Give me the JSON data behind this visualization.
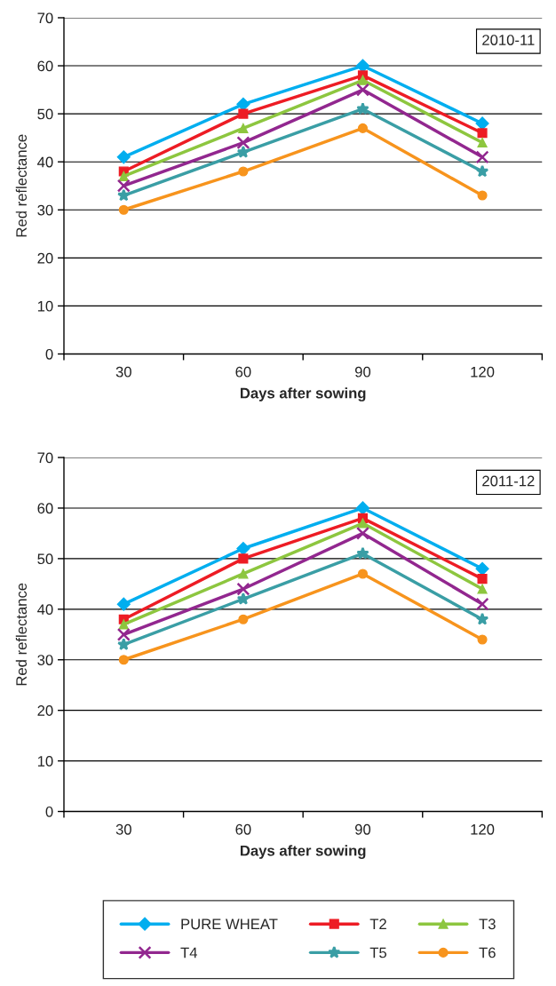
{
  "chart_data": [
    {
      "type": "line",
      "xlabel": "Days after sowing",
      "ylabel": "Red reflectance",
      "annotations": [
        "2010-11"
      ],
      "categories": [
        "30",
        "60",
        "90",
        "120"
      ],
      "ylim": [
        0,
        70
      ],
      "yticks": [
        0,
        10,
        20,
        30,
        40,
        50,
        60,
        70
      ],
      "grid": "y",
      "legend": false,
      "series": [
        {
          "color": "#00aeef",
          "marker": "diamond",
          "values": [
            41,
            52,
            60,
            48
          ]
        },
        {
          "color": "#ed1c24",
          "marker": "square",
          "values": [
            38,
            50,
            58,
            46
          ]
        },
        {
          "color": "#8dc63f",
          "marker": "triangle",
          "values": [
            37,
            47,
            57,
            44
          ]
        },
        {
          "color": "#92278f",
          "marker": "cross",
          "values": [
            35,
            44,
            55,
            41
          ]
        },
        {
          "color": "#3a9ea5",
          "marker": "star",
          "values": [
            33,
            42,
            51,
            38
          ]
        },
        {
          "color": "#f7941d",
          "marker": "circle",
          "values": [
            30,
            38,
            47,
            33
          ]
        }
      ]
    },
    {
      "type": "line",
      "xlabel": "Days after sowing",
      "ylabel": "Red reflectance",
      "annotations": [
        "2011-12"
      ],
      "categories": [
        "30",
        "60",
        "90",
        "120"
      ],
      "ylim": [
        0,
        70
      ],
      "yticks": [
        0,
        10,
        20,
        30,
        40,
        50,
        60,
        70
      ],
      "grid": "y",
      "legend": "bottom",
      "series": [
        {
          "name": "PURE WHEAT",
          "color": "#00aeef",
          "marker": "diamond",
          "values": [
            41,
            52,
            60,
            48
          ]
        },
        {
          "name": "T2",
          "color": "#ed1c24",
          "marker": "square",
          "values": [
            38,
            50,
            58,
            46
          ]
        },
        {
          "name": "T3",
          "color": "#8dc63f",
          "marker": "triangle",
          "values": [
            37,
            47,
            57,
            44
          ]
        },
        {
          "name": "T4",
          "color": "#92278f",
          "marker": "cross",
          "values": [
            35,
            44,
            55,
            41
          ]
        },
        {
          "name": "T5",
          "color": "#3a9ea5",
          "marker": "star",
          "values": [
            33,
            42,
            51,
            38
          ]
        },
        {
          "name": "T6",
          "color": "#f7941d",
          "marker": "circle",
          "values": [
            30,
            38,
            47,
            34
          ]
        }
      ]
    }
  ]
}
